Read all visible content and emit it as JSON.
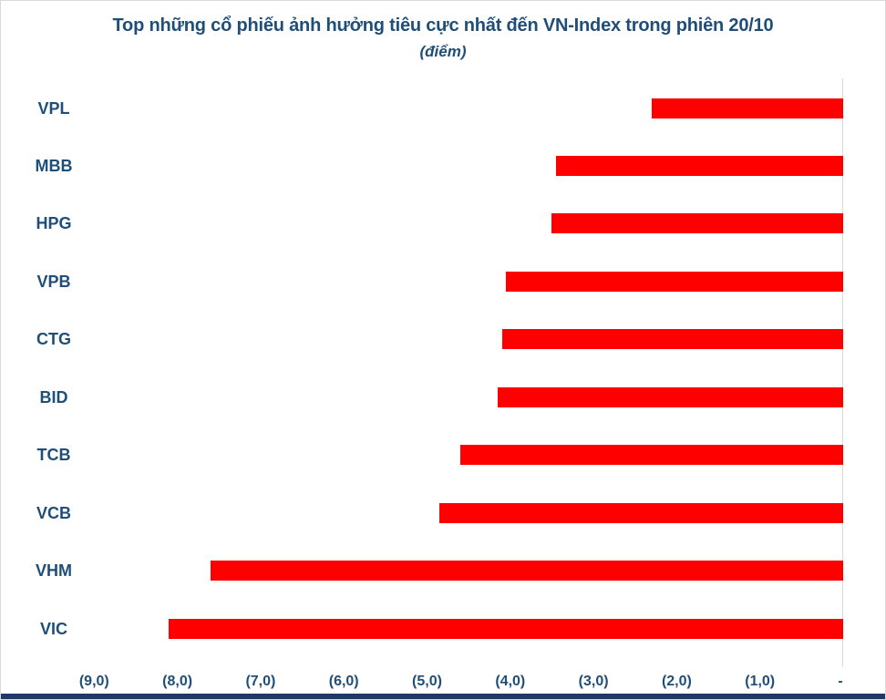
{
  "chart": {
    "title": "Top những cổ phiếu ảnh hưởng tiêu cực nhất đến VN-Index trong phiên 20/10",
    "subtitle": "(điểm)"
  },
  "chart_data": {
    "type": "bar",
    "orientation": "horizontal",
    "title": "Top những cổ phiếu ảnh hưởng tiêu cực nhất đến VN-Index trong phiên 20/10",
    "subtitle": "(điểm)",
    "unit": "điểm",
    "categories": [
      "VPL",
      "MBB",
      "HPG",
      "VPB",
      "CTG",
      "BID",
      "TCB",
      "VCB",
      "VHM",
      "VIC"
    ],
    "values": [
      -2.3,
      -3.45,
      -3.5,
      -4.05,
      -4.1,
      -4.15,
      -4.6,
      -4.85,
      -7.6,
      -8.1
    ],
    "x_ticks": [
      {
        "label": "(9,0)",
        "value": -9
      },
      {
        "label": "(8,0)",
        "value": -8
      },
      {
        "label": "(7,0)",
        "value": -7
      },
      {
        "label": "(6,0)",
        "value": -6
      },
      {
        "label": "(5,0)",
        "value": -5
      },
      {
        "label": "(4,0)",
        "value": -4
      },
      {
        "label": "(3,0)",
        "value": -3
      },
      {
        "label": "(2,0)",
        "value": -2
      },
      {
        "label": "(1,0)",
        "value": -1
      },
      {
        "label": "-",
        "value": 0
      }
    ],
    "xlim": [
      -9.5,
      0.5
    ],
    "grid": "single vertical gridline at zero",
    "legend": "none",
    "colors": {
      "bar": "#FF0000",
      "text": "#1F4E79",
      "axis_strip": "#1F3864",
      "gridline": "#D9D9D9",
      "background": "#FFFFFF"
    }
  }
}
